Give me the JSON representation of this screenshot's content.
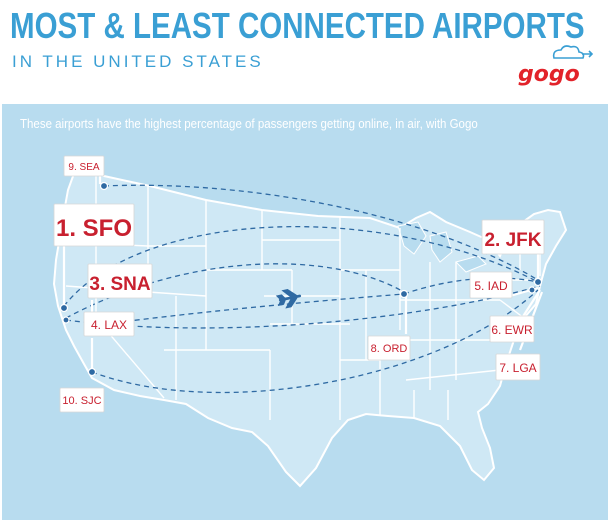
{
  "header": {
    "title": "MOST & LEAST CONNECTED AIRPORTS",
    "subtitle": "IN THE UNITED STATES",
    "brand": "gogo"
  },
  "map": {
    "caption": "These airports have the highest percentage of passengers getting online, in air, with Gogo",
    "airports": [
      {
        "rank_label": "1. SFO"
      },
      {
        "rank_label": "2. JFK"
      },
      {
        "rank_label": "3. SNA"
      },
      {
        "rank_label": "4. LAX"
      },
      {
        "rank_label": "5. IAD"
      },
      {
        "rank_label": "6. EWR"
      },
      {
        "rank_label": "7. LGA"
      },
      {
        "rank_label": "8. ORD"
      },
      {
        "rank_label": "9. SEA"
      },
      {
        "rank_label": "10. SJC"
      }
    ]
  },
  "colors": {
    "title_blue": "#3a9fd4",
    "map_background": "#b8dcef",
    "land": "#cfe8f5",
    "state_border": "#ffffff",
    "route_line": "#2f6aa3",
    "label_red": "#c8202f",
    "brand_red": "#e2232a"
  },
  "icons": {
    "airplane": "airplane-icon",
    "brand_cloud": "cloud-icon"
  }
}
